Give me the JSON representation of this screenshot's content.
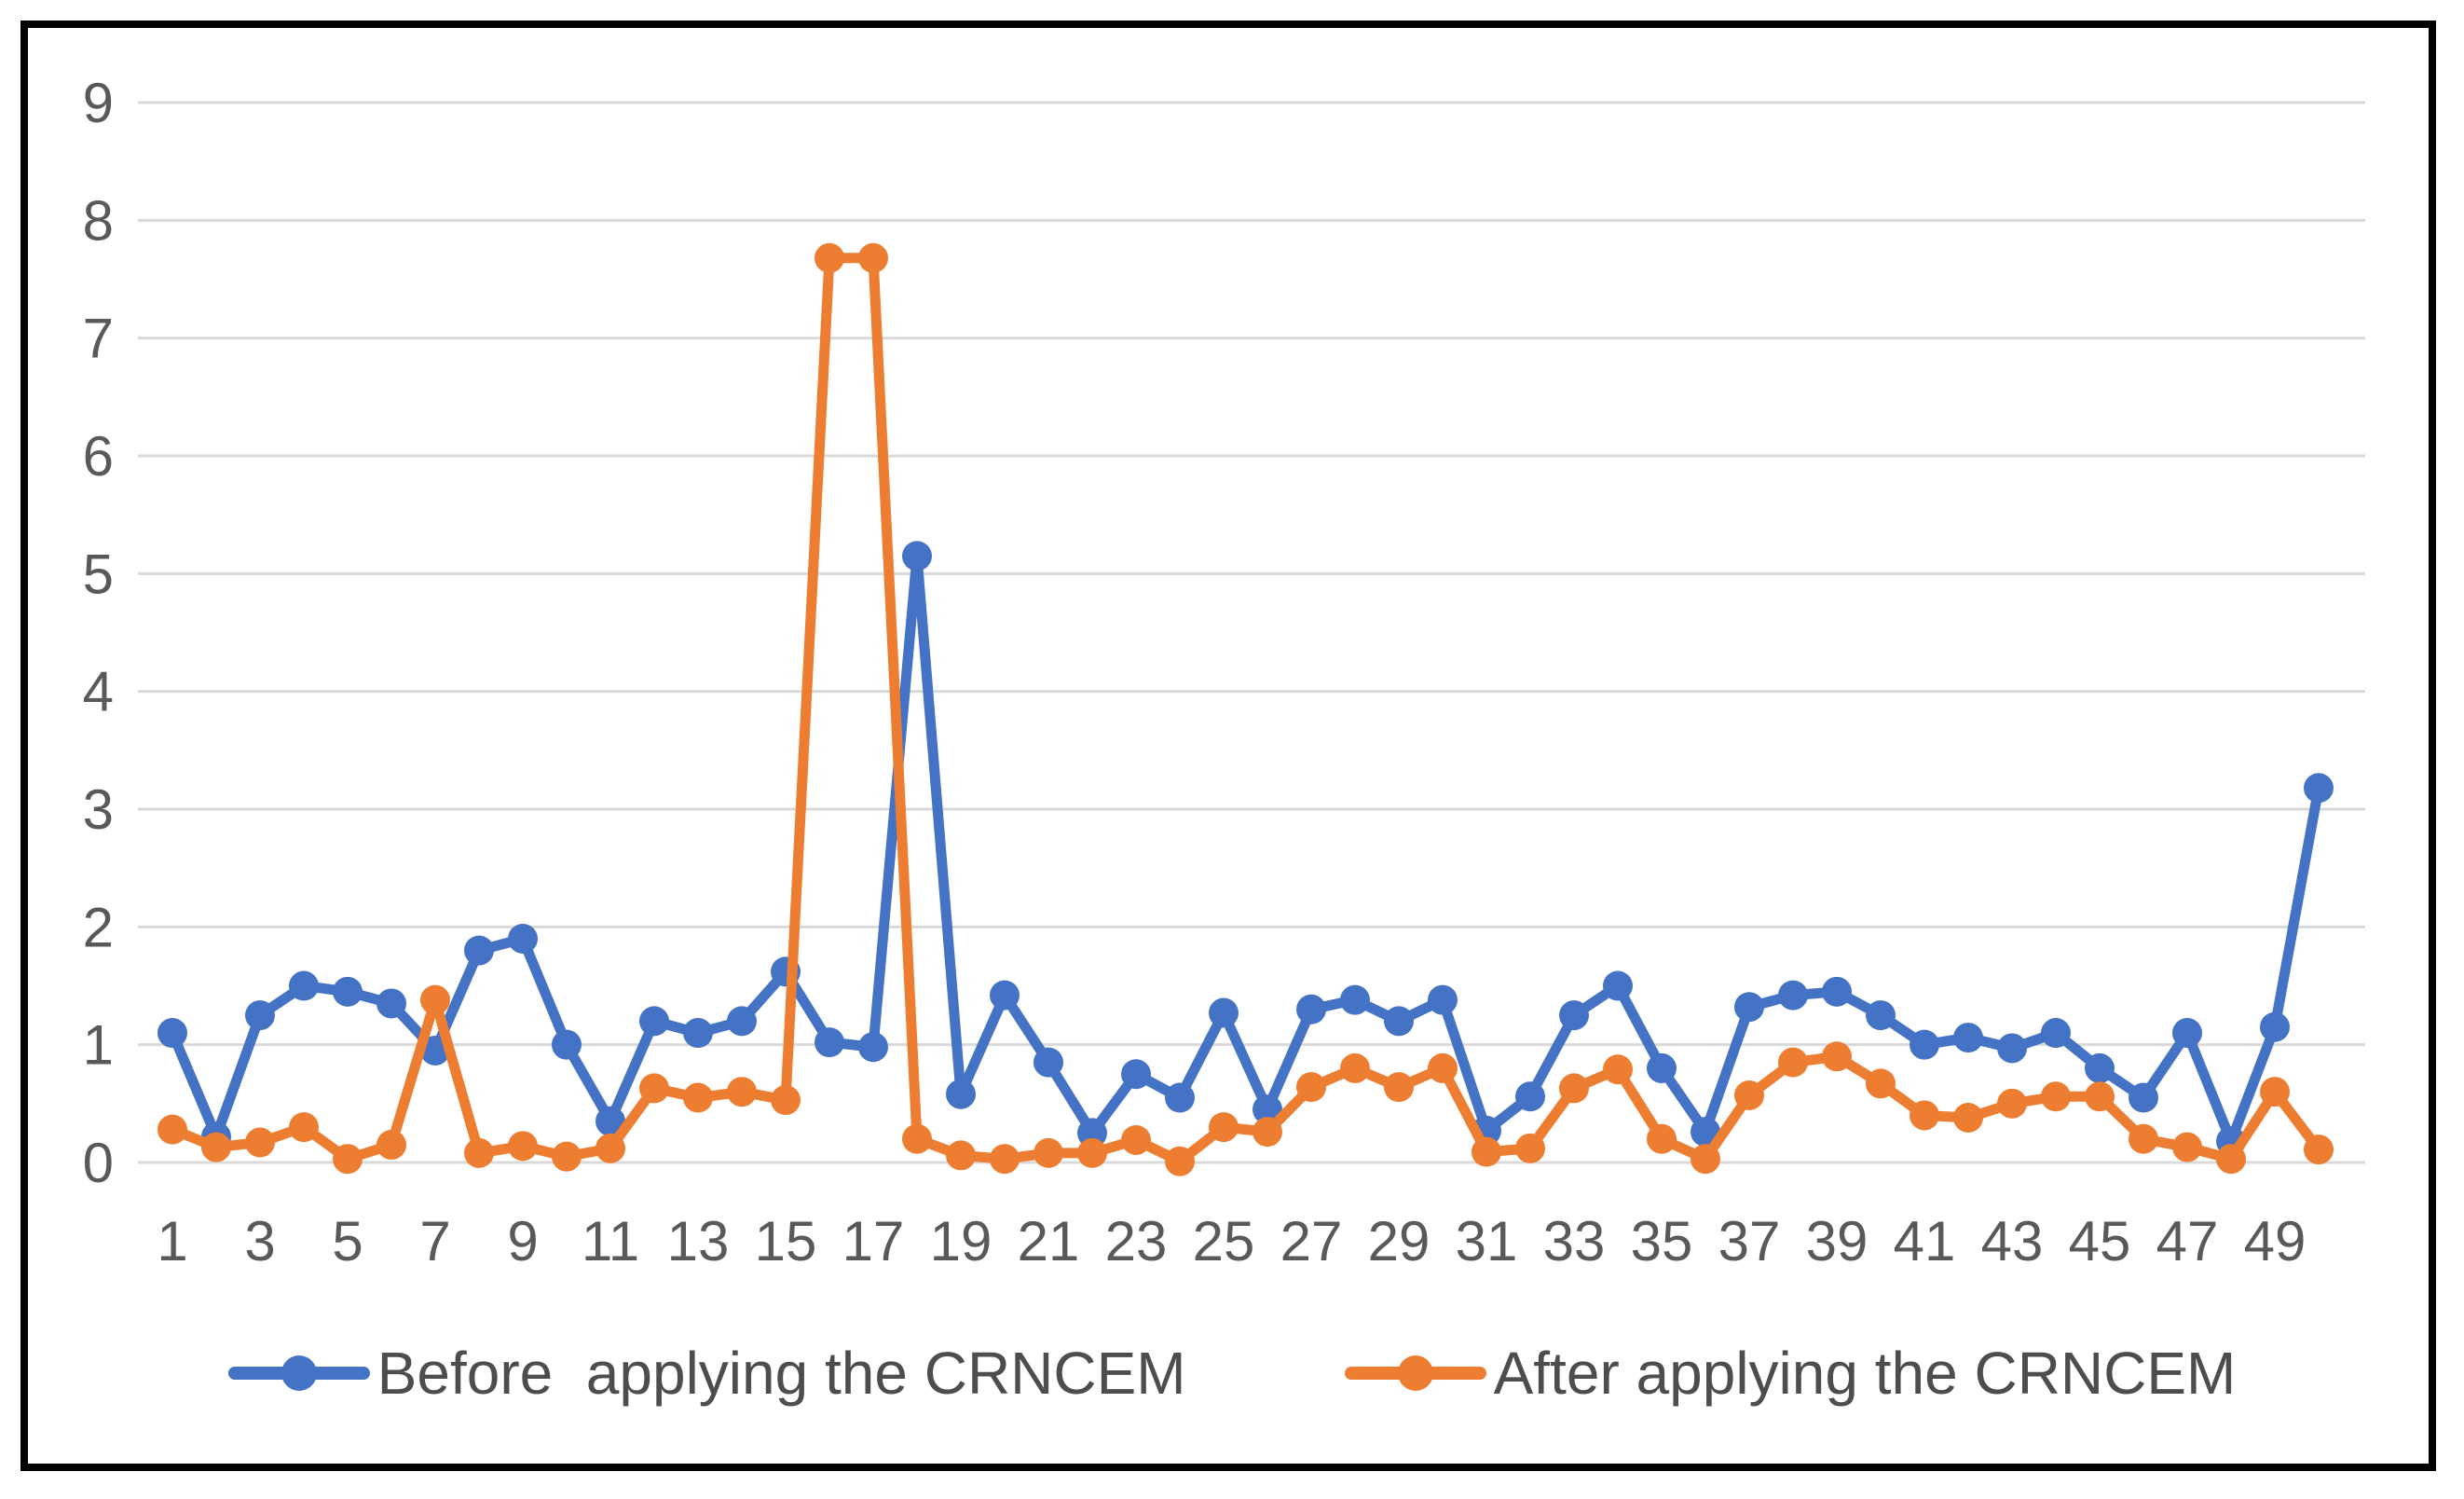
{
  "figure": {
    "background": "#ffffff",
    "border_color": "#000000",
    "gridline_color": "#d9d9d9",
    "tick_label_color": "#595959",
    "legend_text_color": "#4d4d4d"
  },
  "y_axis": {
    "ticks": [
      "9",
      "8",
      "7",
      "6",
      "5",
      "4",
      "3",
      "2",
      "1",
      "0"
    ]
  },
  "x_axis": {
    "ticks": [
      "1",
      "3",
      "5",
      "7",
      "9",
      "11",
      "13",
      "15",
      "17",
      "19",
      "21",
      "23",
      "25",
      "27",
      "29",
      "31",
      "33",
      "35",
      "37",
      "39",
      "41",
      "43",
      "45",
      "47",
      "49"
    ]
  },
  "legend": {
    "items": [
      {
        "label": "Before  applying the CRNCEM",
        "color": "#4472C4",
        "marker": "line-with-dot"
      },
      {
        "label": "After applying the CRNCEM",
        "color": "#ED7D31",
        "marker": "line-with-dot"
      }
    ]
  },
  "chart_data": {
    "type": "line",
    "title": "",
    "xlabel": "",
    "ylabel": "",
    "x": [
      1,
      2,
      3,
      4,
      5,
      6,
      7,
      8,
      9,
      10,
      11,
      12,
      13,
      14,
      15,
      16,
      17,
      18,
      19,
      20,
      21,
      22,
      23,
      24,
      25,
      26,
      27,
      28,
      29,
      30,
      31,
      32,
      33,
      34,
      35,
      36,
      37,
      38,
      39,
      40,
      41,
      42,
      43,
      44,
      45,
      46,
      47,
      48,
      49,
      50
    ],
    "ylim": [
      0,
      9
    ],
    "y_tick_step": 1,
    "grid": "horizontal",
    "legend_position": "bottom",
    "marker_style": "circle",
    "series": [
      {
        "name": "Before  applying the CRNCEM",
        "color": "#4472C4",
        "values": [
          1.1,
          0.22,
          1.25,
          1.5,
          1.45,
          1.35,
          0.95,
          1.8,
          1.9,
          1.0,
          0.35,
          1.2,
          1.1,
          1.2,
          1.62,
          1.02,
          0.98,
          5.15,
          0.58,
          1.42,
          0.85,
          0.25,
          0.75,
          0.55,
          1.27,
          0.45,
          1.3,
          1.38,
          1.2,
          1.38,
          0.27,
          0.56,
          1.25,
          1.5,
          0.8,
          0.26,
          1.32,
          1.42,
          1.45,
          1.25,
          1.0,
          1.06,
          0.97,
          1.1,
          0.8,
          0.55,
          1.1,
          0.18,
          1.15,
          3.18
        ]
      },
      {
        "name": "After applying the CRNCEM",
        "color": "#ED7D31",
        "values": [
          0.28,
          0.13,
          0.17,
          0.3,
          0.03,
          0.15,
          1.38,
          0.08,
          0.14,
          0.05,
          0.12,
          0.63,
          0.55,
          0.6,
          0.53,
          7.68,
          7.68,
          0.2,
          0.06,
          0.03,
          0.08,
          0.08,
          0.19,
          0.01,
          0.3,
          0.26,
          0.64,
          0.8,
          0.64,
          0.8,
          0.09,
          0.12,
          0.63,
          0.79,
          0.2,
          0.03,
          0.57,
          0.85,
          0.9,
          0.67,
          0.4,
          0.38,
          0.5,
          0.56,
          0.56,
          0.2,
          0.13,
          0.03,
          0.6,
          0.11
        ]
      }
    ]
  }
}
